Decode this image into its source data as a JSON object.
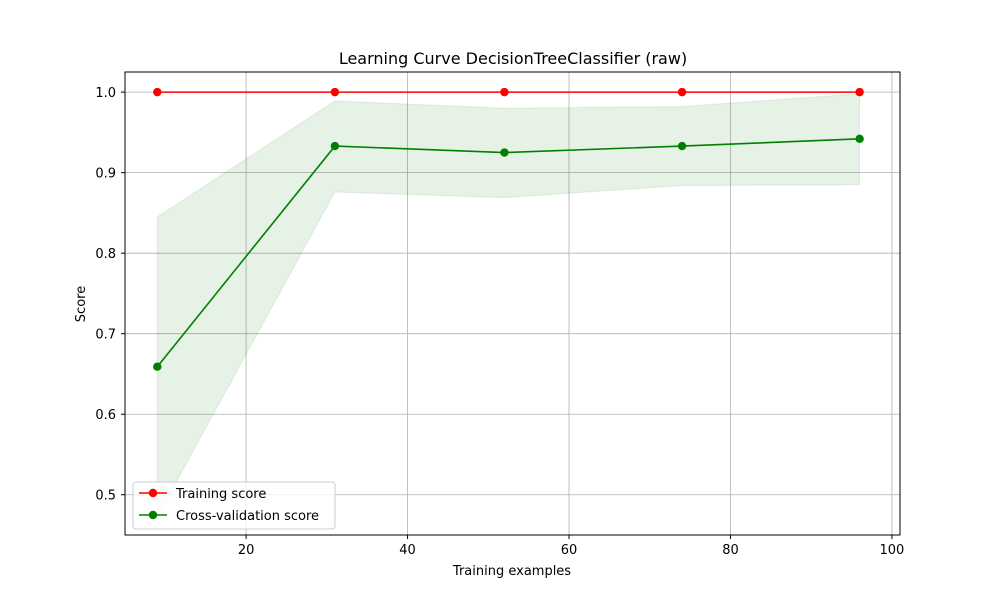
{
  "chart_data": {
    "type": "line",
    "title": "Learning Curve DecisionTreeClassifier (raw)",
    "xlabel": "Training examples",
    "ylabel": "Score",
    "xlim": [
      5,
      101
    ],
    "ylim": [
      0.45,
      1.025
    ],
    "xticks": [
      20,
      40,
      60,
      80,
      100
    ],
    "xtick_labels": [
      "20",
      "40",
      "60",
      "80",
      "100"
    ],
    "yticks": [
      0.5,
      0.6,
      0.7,
      0.8,
      0.9,
      1.0
    ],
    "ytick_labels": [
      "0.5",
      "0.6",
      "0.7",
      "0.8",
      "0.9",
      "1.0"
    ],
    "grid": true,
    "legend_position": "lower-left",
    "x": [
      9,
      31,
      52,
      74,
      96
    ],
    "series": [
      {
        "name": "Training score",
        "color": "#ff0000",
        "values": [
          1.0,
          1.0,
          1.0,
          1.0,
          1.0
        ]
      },
      {
        "name": "Cross-validation score",
        "color": "#008000",
        "values": [
          0.659,
          0.933,
          0.925,
          0.933,
          0.942
        ],
        "band_low": [
          0.473,
          0.876,
          0.869,
          0.884,
          0.885
        ],
        "band_high": [
          0.845,
          0.989,
          0.98,
          0.982,
          0.998
        ],
        "band_color": "#008000"
      }
    ]
  }
}
